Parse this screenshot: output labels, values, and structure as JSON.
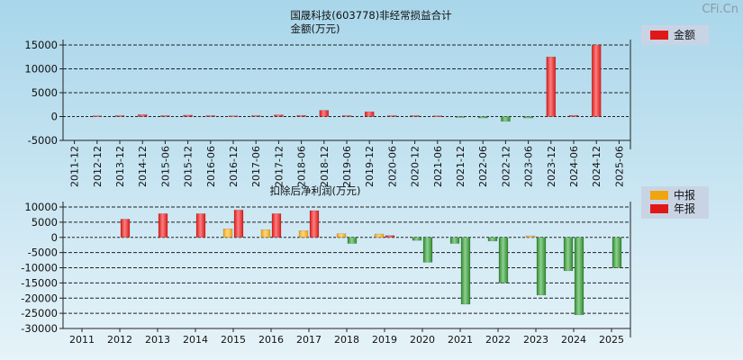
{
  "watermark": "CFi.Cn",
  "colors": {
    "bg_top": "#a9d6ea",
    "bg_bottom": "#e6f3f9",
    "red": "#e01818",
    "red_light": "#f88080",
    "green": "#2e8a2e",
    "green_light": "#8fd08f",
    "orange": "#f0a410",
    "orange_light": "#ffd780",
    "legend_bg": "#c8d4e4"
  },
  "chart_data": [
    {
      "type": "bar",
      "title": "国晟科技(603778)非经常损益合计",
      "subtitle": "金额(万元)",
      "categories": [
        "2011-12",
        "2012-12",
        "2013-12",
        "2014-12",
        "2015-06",
        "2015-12",
        "2016-06",
        "2016-12",
        "2017-06",
        "2017-12",
        "2018-06",
        "2018-12",
        "2019-06",
        "2019-12",
        "2020-06",
        "2020-12",
        "2021-06",
        "2021-12",
        "2022-06",
        "2022-12",
        "2023-06",
        "2023-12",
        "2024-06",
        "2024-12",
        "2025-06"
      ],
      "series": [
        {
          "name": "金额",
          "values": [
            0,
            150,
            200,
            400,
            200,
            300,
            200,
            150,
            200,
            350,
            250,
            1300,
            200,
            1000,
            200,
            200,
            150,
            -150,
            -300,
            -1000,
            -300,
            12500,
            250,
            15000,
            0
          ]
        }
      ],
      "ylim": [
        -5000,
        15000
      ],
      "yticks": [
        "15000",
        "10000",
        "5000",
        "0",
        "-5000"
      ],
      "grid": true,
      "legend_position": "top-right"
    },
    {
      "type": "bar",
      "title": "扣除后净利润(万元)",
      "categories": [
        "2011",
        "2012",
        "2013",
        "2014",
        "2015",
        "2016",
        "2017",
        "2018",
        "2019",
        "2020",
        "2021",
        "2022",
        "2023",
        "2024",
        "2025"
      ],
      "series": [
        {
          "name": "中报",
          "values": [
            0,
            0,
            0,
            0,
            2800,
            2500,
            2200,
            1200,
            1100,
            -1000,
            -2000,
            -1200,
            500,
            -11000,
            0
          ]
        },
        {
          "name": "年报",
          "values": [
            0,
            6000,
            7800,
            7800,
            9000,
            7800,
            8800,
            -2000,
            600,
            -8200,
            -22000,
            -15000,
            -19000,
            -25500,
            -10000
          ]
        }
      ],
      "ylim": [
        -30000,
        10000
      ],
      "yticks": [
        "10000",
        "5000",
        "0",
        "-5000",
        "-10000",
        "-15000",
        "-20000",
        "-25000",
        "-30000"
      ],
      "grid": true,
      "legend_position": "top-right"
    }
  ]
}
